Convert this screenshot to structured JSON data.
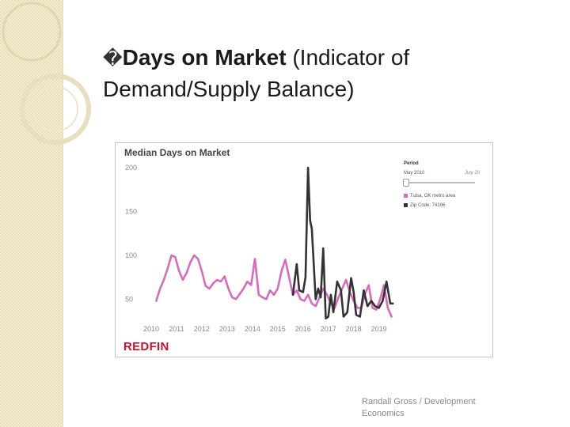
{
  "slide": {
    "bullet_glyph": "�",
    "title_bold": "Days on Market",
    "title_rest": " (Indicator of Demand/Supply Balance)",
    "footer": "Randall Gross / Development Economics"
  },
  "chart_data": {
    "type": "line",
    "title": "Median Days on Market",
    "brand": "REDFIN",
    "ylim": [
      25,
      210
    ],
    "yticks": [
      50,
      100,
      150,
      200
    ],
    "xlim": [
      2010,
      2019.7
    ],
    "xticks": [
      2010,
      2011,
      2012,
      2013,
      2014,
      2015,
      2016,
      2017,
      2018,
      2019
    ],
    "legend": {
      "title": "Period",
      "range_start": "May 2010",
      "range_end": "July 20"
    },
    "series": [
      {
        "name": "Tulsa, OK metro area",
        "color": "#d66bc0",
        "x": [
          2010.2,
          2010.35,
          2010.5,
          2010.65,
          2010.8,
          2010.95,
          2011.1,
          2011.25,
          2011.4,
          2011.55,
          2011.7,
          2011.85,
          2012.0,
          2012.15,
          2012.3,
          2012.45,
          2012.6,
          2012.75,
          2012.9,
          2013.05,
          2013.2,
          2013.35,
          2013.5,
          2013.65,
          2013.8,
          2013.95,
          2014.1,
          2014.25,
          2014.4,
          2014.55,
          2014.7,
          2014.85,
          2015.0,
          2015.15,
          2015.3,
          2015.45,
          2015.6,
          2015.75,
          2015.9,
          2016.05,
          2016.2,
          2016.35,
          2016.5,
          2016.65,
          2016.8,
          2016.95,
          2017.1,
          2017.25,
          2017.4,
          2017.55,
          2017.7,
          2017.85,
          2018.0,
          2018.15,
          2018.3,
          2018.45,
          2018.6,
          2018.75,
          2018.9,
          2019.05,
          2019.2,
          2019.35,
          2019.5
        ],
        "values": [
          48,
          62,
          72,
          85,
          100,
          98,
          82,
          72,
          80,
          92,
          100,
          96,
          82,
          65,
          62,
          68,
          72,
          70,
          76,
          62,
          52,
          50,
          56,
          62,
          70,
          66,
          96,
          55,
          52,
          50,
          60,
          55,
          62,
          82,
          95,
          75,
          55,
          60,
          50,
          48,
          55,
          45,
          42,
          52,
          62,
          55,
          45,
          40,
          52,
          62,
          72,
          58,
          48,
          40,
          40,
          56,
          66,
          40,
          38,
          50,
          66,
          40,
          30
        ]
      },
      {
        "name": "Zip Code: 74106",
        "color": "#333333",
        "x": [
          2015.6,
          2015.75,
          2015.85,
          2016.0,
          2016.1,
          2016.2,
          2016.28,
          2016.35,
          2016.5,
          2016.6,
          2016.7,
          2016.8,
          2016.9,
          2017.0,
          2017.1,
          2017.2,
          2017.35,
          2017.5,
          2017.6,
          2017.75,
          2017.9,
          2018.0,
          2018.1,
          2018.25,
          2018.4,
          2018.55,
          2018.7,
          2018.85,
          2019.0,
          2019.15,
          2019.3,
          2019.45,
          2019.55
        ],
        "values": [
          55,
          90,
          60,
          58,
          75,
          200,
          140,
          130,
          50,
          62,
          52,
          108,
          28,
          30,
          55,
          35,
          70,
          60,
          30,
          35,
          74,
          58,
          32,
          30,
          60,
          42,
          48,
          42,
          40,
          48,
          70,
          45,
          45
        ]
      }
    ]
  }
}
